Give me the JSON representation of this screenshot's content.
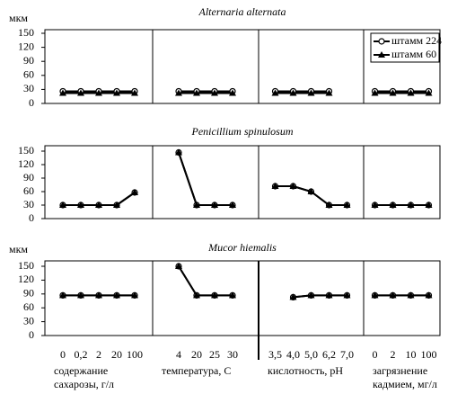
{
  "chart_data": [
    {
      "type": "line",
      "title": "Alternaria alternata",
      "ylabel": "мкм",
      "ylim": [
        0,
        150
      ],
      "yticks": [
        0,
        30,
        60,
        90,
        120,
        150
      ],
      "panels": [
        {
          "series": [
            {
              "values": [
                26,
                26,
                26,
                26,
                26
              ]
            },
            {
              "values": [
                22,
                22,
                22,
                22,
                22
              ]
            }
          ]
        },
        {
          "series": [
            {
              "values": [
                26,
                26,
                26,
                26
              ]
            },
            {
              "values": [
                22,
                22,
                22,
                22
              ]
            }
          ]
        },
        {
          "series": [
            {
              "values": [
                26,
                26,
                26,
                26,
                null
              ]
            },
            {
              "values": [
                22,
                22,
                22,
                22,
                null
              ]
            }
          ]
        },
        {
          "series": [
            {
              "values": [
                26,
                26,
                26,
                26
              ]
            },
            {
              "values": [
                22,
                22,
                22,
                22
              ]
            }
          ]
        }
      ]
    },
    {
      "type": "line",
      "title": "Penicillium spinulosum",
      "ylim": [
        0,
        150
      ],
      "yticks": [
        0,
        30,
        60,
        90,
        120,
        150
      ],
      "panels": [
        {
          "series": [
            {
              "values": [
                30,
                30,
                30,
                30,
                58
              ]
            },
            {
              "values": [
                30,
                30,
                30,
                30,
                58
              ]
            }
          ]
        },
        {
          "series": [
            {
              "values": [
                147,
                30,
                30,
                30
              ]
            },
            {
              "values": [
                147,
                30,
                30,
                30
              ]
            }
          ]
        },
        {
          "series": [
            {
              "values": [
                72,
                72,
                60,
                30,
                30
              ]
            },
            {
              "values": [
                72,
                72,
                60,
                30,
                30
              ]
            }
          ]
        },
        {
          "series": [
            {
              "values": [
                30,
                30,
                30,
                30
              ]
            },
            {
              "values": [
                30,
                30,
                30,
                30
              ]
            }
          ]
        }
      ]
    },
    {
      "type": "line",
      "title": "Mucor hiemalis",
      "ylabel": "мкм",
      "ylim": [
        0,
        150
      ],
      "yticks": [
        0,
        30,
        60,
        90,
        120,
        150
      ],
      "panels": [
        {
          "series": [
            {
              "values": [
                87,
                87,
                87,
                87,
                87
              ]
            },
            {
              "values": [
                87,
                87,
                87,
                87,
                87
              ]
            }
          ]
        },
        {
          "series": [
            {
              "values": [
                150,
                87,
                87,
                87
              ]
            },
            {
              "values": [
                150,
                87,
                87,
                87
              ]
            }
          ]
        },
        {
          "series": [
            {
              "values": [
                null,
                83,
                87,
                87,
                87
              ]
            },
            {
              "values": [
                null,
                83,
                87,
                87,
                87
              ]
            }
          ]
        },
        {
          "series": [
            {
              "values": [
                87,
                87,
                87,
                87
              ]
            },
            {
              "values": [
                87,
                87,
                87,
                87
              ]
            }
          ]
        }
      ]
    }
  ],
  "x_axes": [
    {
      "categories": [
        "0",
        "0,2",
        "2",
        "20",
        "100"
      ],
      "label": [
        "содержание",
        "сахарозы, г/л"
      ]
    },
    {
      "categories": [
        "4",
        "20",
        "25",
        "30"
      ],
      "label": [
        "температура, С"
      ]
    },
    {
      "categories": [
        "3,5",
        "4,0",
        "5,0",
        "6,2",
        "7,0"
      ],
      "label": [
        "кислотность, pH"
      ]
    },
    {
      "categories": [
        "0",
        "2",
        "10",
        "100"
      ],
      "label": [
        "загрязнение",
        "кадмием, мг/л"
      ]
    }
  ],
  "legend": {
    "position": "upper right",
    "entries": [
      {
        "name": "штамм 224",
        "marker": "circle"
      },
      {
        "name": "штамм 60",
        "marker": "triangle"
      }
    ]
  }
}
